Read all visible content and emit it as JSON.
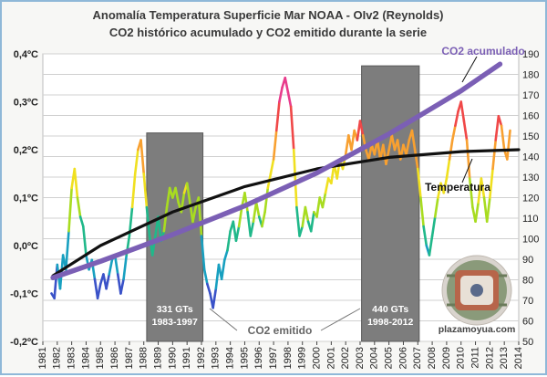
{
  "chart_data": {
    "type": "line",
    "title": "Anomalía Temperatura Superficie Mar NOAA - OIv2 (Reynolds)",
    "subtitle": "CO2 histórico acumulado y CO2 emitido durante la serie",
    "xlabel": "",
    "ylabel_left": "",
    "ylabel_right": "",
    "x_ticks": [
      "1981",
      "1982",
      "1983",
      "1984",
      "1985",
      "1986",
      "1987",
      "1988",
      "1989",
      "1990",
      "1991",
      "1992",
      "1993",
      "1994",
      "1995",
      "1996",
      "1997",
      "1998",
      "1999",
      "2000",
      "2001",
      "2002",
      "2003",
      "2004",
      "2005",
      "2006",
      "2007",
      "2008",
      "2009",
      "2010",
      "2011",
      "2012",
      "2013",
      "2014"
    ],
    "x_range": [
      1981,
      2014
    ],
    "y_left_ticks": [
      "-0,2ºC",
      "-0,1ºC",
      "0,0ºC",
      "0,1ºC",
      "0,2ºC",
      "0,3ºC",
      "0,4ºC"
    ],
    "y_left_range": [
      -0.2,
      0.4
    ],
    "y_right_ticks": [
      "50",
      "60",
      "70",
      "80",
      "90",
      "100",
      "110",
      "120",
      "130",
      "140",
      "150",
      "160",
      "170",
      "180",
      "190"
    ],
    "y_right_range": [
      50,
      190
    ],
    "grid": true,
    "series": [
      {
        "name": "Temperatura",
        "axis": "left",
        "color_scale": [
          "#3a52c8",
          "#18a0c0",
          "#20b88a",
          "#a8dc20",
          "#f0e020",
          "#f8a030",
          "#f04848",
          "#e83c8c"
        ],
        "points": [
          [
            1981.6,
            -0.1
          ],
          [
            1981.8,
            -0.11
          ],
          [
            1982.0,
            -0.04
          ],
          [
            1982.2,
            -0.09
          ],
          [
            1982.4,
            -0.02
          ],
          [
            1982.6,
            -0.05
          ],
          [
            1982.8,
            0.03
          ],
          [
            1983.0,
            0.12
          ],
          [
            1983.2,
            0.16
          ],
          [
            1983.4,
            0.1
          ],
          [
            1983.6,
            0.06
          ],
          [
            1983.8,
            0.04
          ],
          [
            1984.0,
            -0.02
          ],
          [
            1984.2,
            -0.05
          ],
          [
            1984.4,
            -0.03
          ],
          [
            1984.6,
            -0.07
          ],
          [
            1984.8,
            -0.11
          ],
          [
            1985.0,
            -0.08
          ],
          [
            1985.2,
            -0.06
          ],
          [
            1985.4,
            -0.09
          ],
          [
            1985.6,
            -0.06
          ],
          [
            1985.8,
            -0.03
          ],
          [
            1986.0,
            -0.02
          ],
          [
            1986.2,
            -0.06
          ],
          [
            1986.4,
            -0.1
          ],
          [
            1986.6,
            -0.07
          ],
          [
            1986.8,
            -0.02
          ],
          [
            1987.0,
            0.02
          ],
          [
            1987.2,
            0.08
          ],
          [
            1987.4,
            0.15
          ],
          [
            1987.6,
            0.2
          ],
          [
            1987.8,
            0.22
          ],
          [
            1988.0,
            0.15
          ],
          [
            1988.2,
            0.08
          ],
          [
            1988.4,
            0.02
          ],
          [
            1988.6,
            -0.02
          ],
          [
            1988.8,
            0.02
          ],
          [
            1989.0,
            0.06
          ],
          [
            1989.2,
            0.01
          ],
          [
            1989.4,
            0.03
          ],
          [
            1989.6,
            0.08
          ],
          [
            1989.8,
            0.12
          ],
          [
            1990.0,
            0.1
          ],
          [
            1990.2,
            0.12
          ],
          [
            1990.4,
            0.09
          ],
          [
            1990.6,
            0.07
          ],
          [
            1990.8,
            0.11
          ],
          [
            1991.0,
            0.13
          ],
          [
            1991.2,
            0.09
          ],
          [
            1991.4,
            0.05
          ],
          [
            1991.6,
            0.08
          ],
          [
            1991.8,
            0.1
          ],
          [
            1992.0,
            0.02
          ],
          [
            1992.2,
            -0.05
          ],
          [
            1992.4,
            -0.08
          ],
          [
            1992.6,
            -0.1
          ],
          [
            1992.8,
            -0.13
          ],
          [
            1993.0,
            -0.09
          ],
          [
            1993.2,
            -0.04
          ],
          [
            1993.4,
            -0.07
          ],
          [
            1993.6,
            -0.03
          ],
          [
            1993.8,
            -0.01
          ],
          [
            1994.0,
            0.03
          ],
          [
            1994.2,
            0.05
          ],
          [
            1994.4,
            0.01
          ],
          [
            1994.6,
            0.04
          ],
          [
            1994.8,
            0.08
          ],
          [
            1995.0,
            0.11
          ],
          [
            1995.2,
            0.07
          ],
          [
            1995.4,
            0.02
          ],
          [
            1995.6,
            0.05
          ],
          [
            1995.8,
            0.09
          ],
          [
            1996.0,
            0.06
          ],
          [
            1996.2,
            0.04
          ],
          [
            1996.4,
            0.07
          ],
          [
            1996.6,
            0.12
          ],
          [
            1996.8,
            0.15
          ],
          [
            1997.0,
            0.18
          ],
          [
            1997.2,
            0.24
          ],
          [
            1997.4,
            0.3
          ],
          [
            1997.6,
            0.33
          ],
          [
            1997.8,
            0.35
          ],
          [
            1998.0,
            0.32
          ],
          [
            1998.2,
            0.29
          ],
          [
            1998.4,
            0.2
          ],
          [
            1998.6,
            0.08
          ],
          [
            1998.8,
            0.02
          ],
          [
            1999.0,
            0.04
          ],
          [
            1999.2,
            0.08
          ],
          [
            1999.4,
            0.05
          ],
          [
            1999.6,
            0.03
          ],
          [
            1999.8,
            0.07
          ],
          [
            2000.0,
            0.06
          ],
          [
            2000.2,
            0.1
          ],
          [
            2000.4,
            0.08
          ],
          [
            2000.6,
            0.11
          ],
          [
            2000.8,
            0.14
          ],
          [
            2001.0,
            0.13
          ],
          [
            2001.2,
            0.17
          ],
          [
            2001.4,
            0.14
          ],
          [
            2001.6,
            0.18
          ],
          [
            2001.8,
            0.16
          ],
          [
            2002.0,
            0.19
          ],
          [
            2002.2,
            0.23
          ],
          [
            2002.4,
            0.2
          ],
          [
            2002.6,
            0.24
          ],
          [
            2002.8,
            0.22
          ],
          [
            2003.0,
            0.26
          ],
          [
            2003.2,
            0.23
          ],
          [
            2003.4,
            0.2
          ],
          [
            2003.6,
            0.18
          ],
          [
            2003.8,
            0.21
          ],
          [
            2004.0,
            0.19
          ],
          [
            2004.2,
            0.22
          ],
          [
            2004.4,
            0.18
          ],
          [
            2004.6,
            0.21
          ],
          [
            2004.8,
            0.17
          ],
          [
            2005.0,
            0.2
          ],
          [
            2005.2,
            0.23
          ],
          [
            2005.4,
            0.2
          ],
          [
            2005.6,
            0.22
          ],
          [
            2005.8,
            0.18
          ],
          [
            2006.0,
            0.21
          ],
          [
            2006.2,
            0.19
          ],
          [
            2006.4,
            0.22
          ],
          [
            2006.6,
            0.24
          ],
          [
            2006.8,
            0.2
          ],
          [
            2007.0,
            0.16
          ],
          [
            2007.2,
            0.1
          ],
          [
            2007.4,
            0.04
          ],
          [
            2007.6,
            0.0
          ],
          [
            2007.8,
            -0.02
          ],
          [
            2008.0,
            0.02
          ],
          [
            2008.2,
            0.06
          ],
          [
            2008.4,
            0.1
          ],
          [
            2008.6,
            0.13
          ],
          [
            2008.8,
            0.11
          ],
          [
            2009.0,
            0.14
          ],
          [
            2009.2,
            0.18
          ],
          [
            2009.4,
            0.22
          ],
          [
            2009.6,
            0.25
          ],
          [
            2009.8,
            0.28
          ],
          [
            2010.0,
            0.3
          ],
          [
            2010.2,
            0.26
          ],
          [
            2010.4,
            0.22
          ],
          [
            2010.6,
            0.14
          ],
          [
            2010.8,
            0.08
          ],
          [
            2011.0,
            0.05
          ],
          [
            2011.2,
            0.09
          ],
          [
            2011.4,
            0.14
          ],
          [
            2011.6,
            0.1
          ],
          [
            2011.8,
            0.05
          ],
          [
            2012.0,
            0.1
          ],
          [
            2012.2,
            0.16
          ],
          [
            2012.4,
            0.22
          ],
          [
            2012.6,
            0.27
          ],
          [
            2012.8,
            0.25
          ],
          [
            2013.0,
            0.2
          ],
          [
            2013.2,
            0.18
          ],
          [
            2013.4,
            0.24
          ]
        ]
      },
      {
        "name": "Temperatura",
        "type": "trend",
        "axis": "left",
        "color": "#111111",
        "points": [
          [
            1981.7,
            -0.063
          ],
          [
            1985,
            0.0
          ],
          [
            1990,
            0.07
          ],
          [
            1995,
            0.123
          ],
          [
            2000,
            0.16
          ],
          [
            2005,
            0.184
          ],
          [
            2010,
            0.196
          ],
          [
            2014,
            0.2
          ]
        ]
      },
      {
        "name": "CO2 acumulado",
        "axis": "right",
        "color": "#7b5fb5",
        "points": [
          [
            1981.7,
            81
          ],
          [
            1985,
            89
          ],
          [
            1990,
            102
          ],
          [
            1995,
            116
          ],
          [
            2000,
            132
          ],
          [
            2005,
            151
          ],
          [
            2010,
            172
          ],
          [
            2012.7,
            185
          ]
        ]
      }
    ],
    "annotations": [
      {
        "label": "331 GTs",
        "sublabel": "1983-1997",
        "x_range": [
          1988.2,
          1992.1
        ],
        "y_top": 0.235
      },
      {
        "label": "440 GTs",
        "sublabel": "1998-2012",
        "x_range": [
          2003.1,
          2007.1
        ],
        "y_top": 0.375
      },
      {
        "label": "CO2 emitido"
      },
      {
        "label": "Temperatura"
      },
      {
        "label": "CO2 acumulado"
      }
    ],
    "watermark": "plazamoyua.com"
  }
}
